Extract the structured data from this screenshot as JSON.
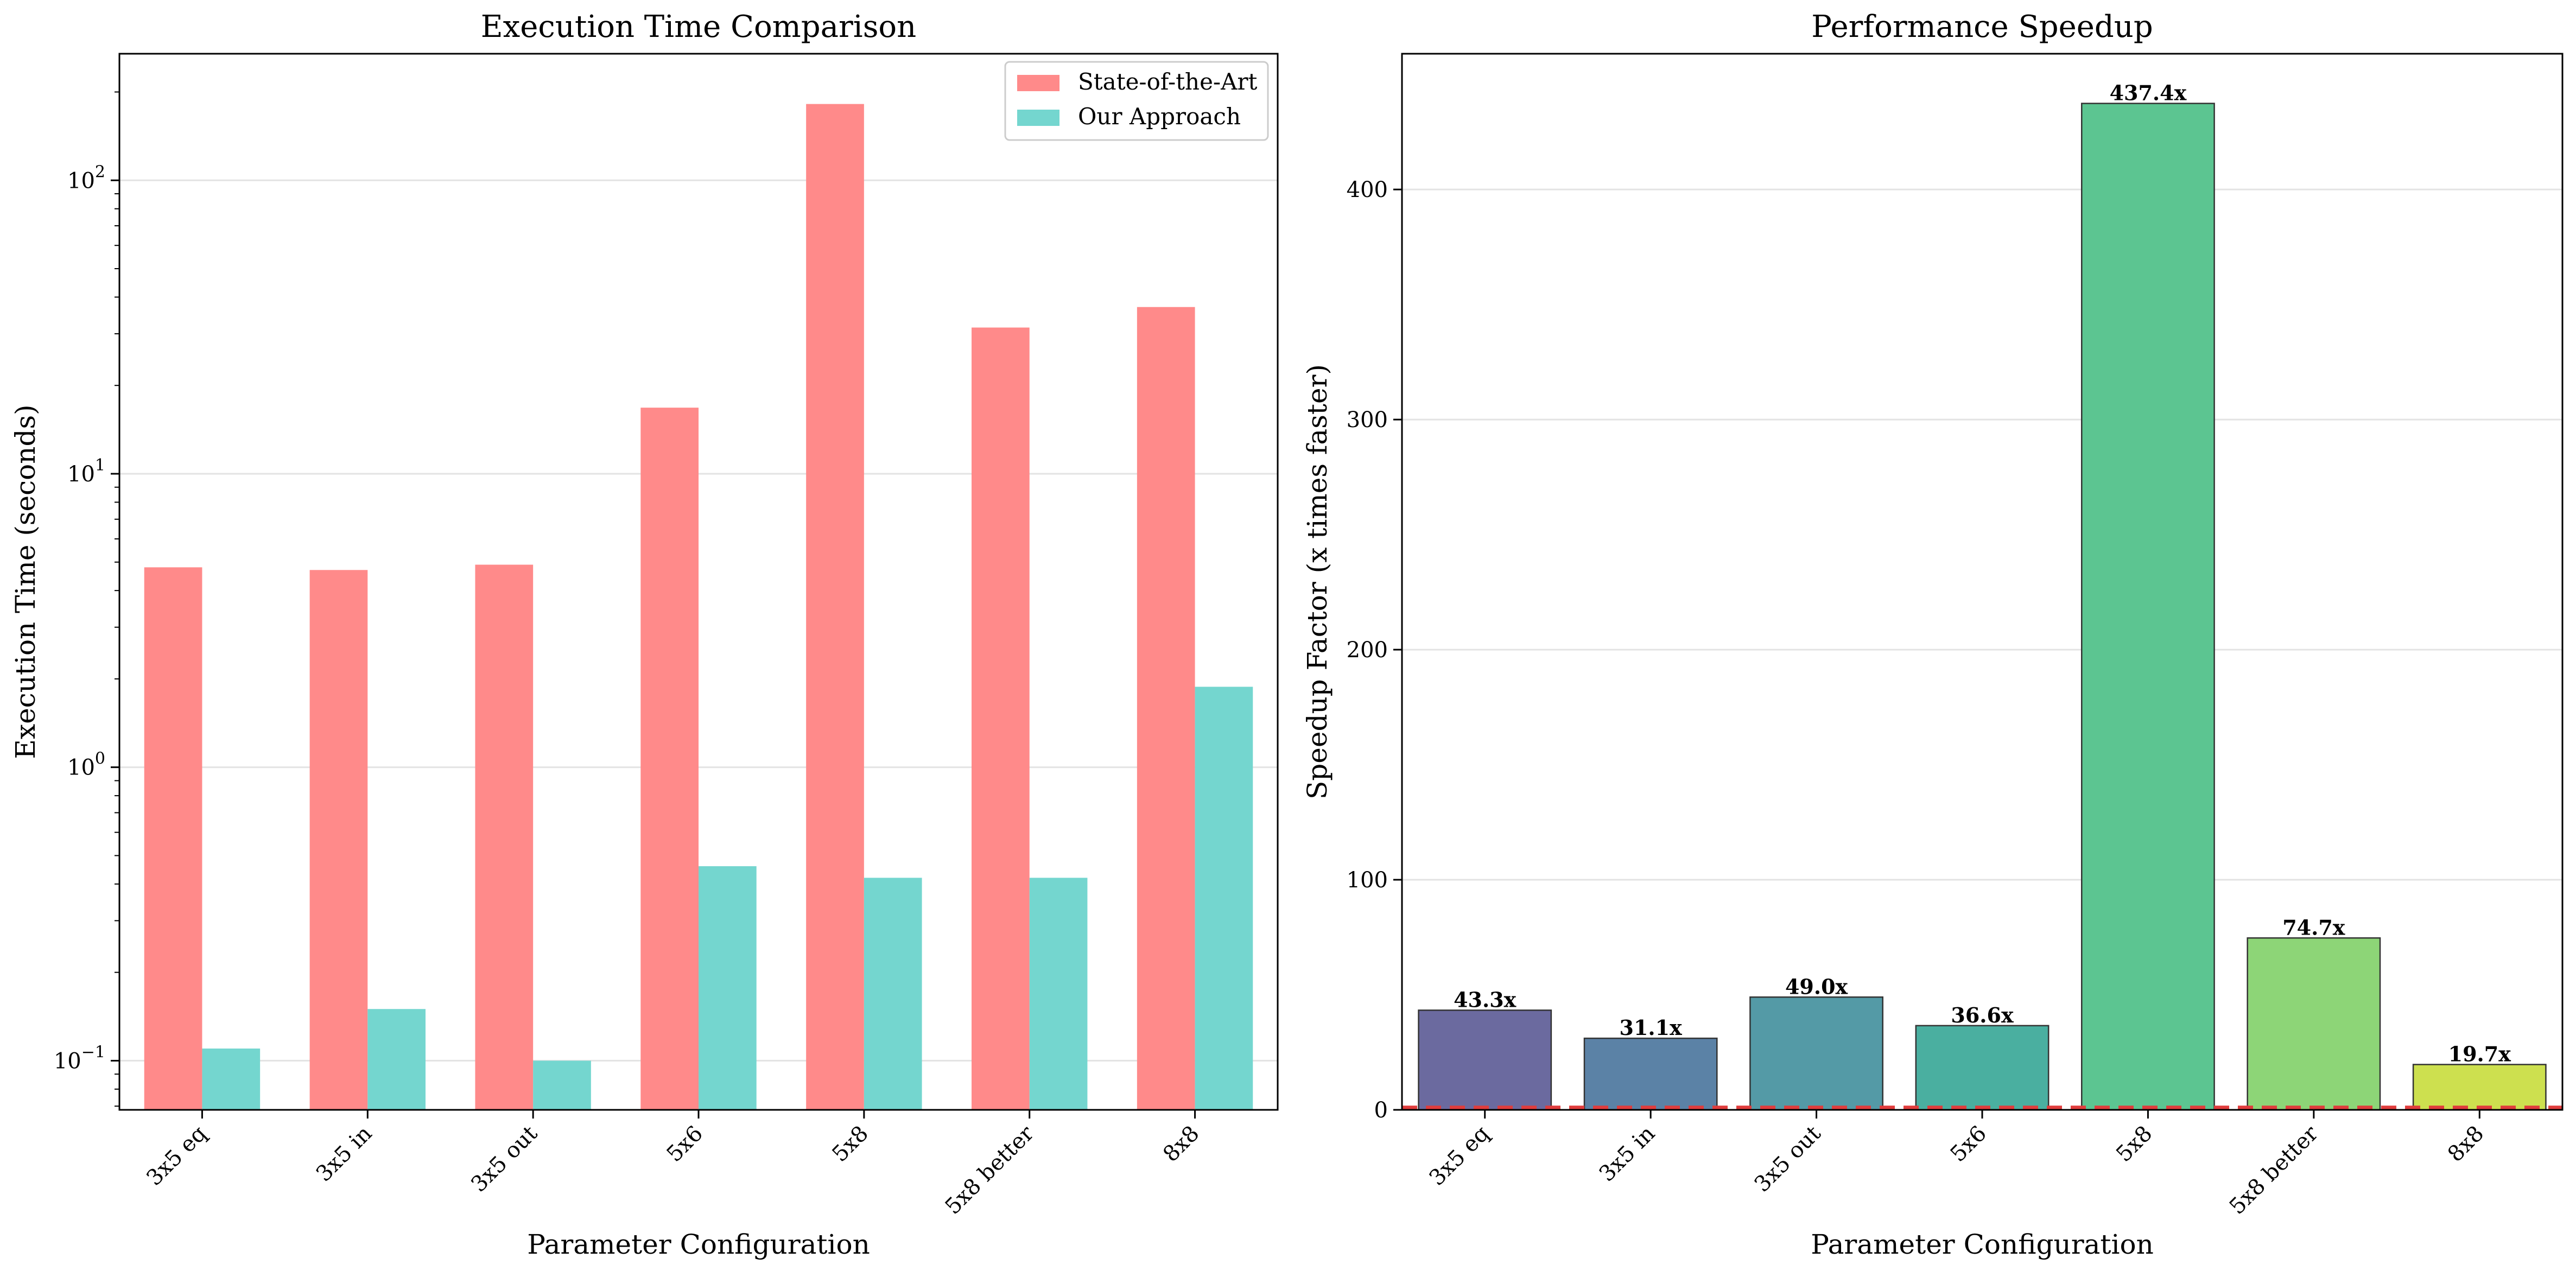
{
  "chart_data": [
    {
      "type": "bar",
      "title": "Execution Time Comparison",
      "xlabel": "Parameter Configuration",
      "ylabel": "Execution Time (seconds)",
      "yscale": "log",
      "ylim": [
        0.068,
        270
      ],
      "ytick_values": [
        0.1,
        1,
        10,
        100
      ],
      "ytick_labels": [
        {
          "base": "10",
          "exp": "−1"
        },
        {
          "base": "10",
          "exp": "0"
        },
        {
          "base": "10",
          "exp": "1"
        },
        {
          "base": "10",
          "exp": "2"
        }
      ],
      "grid": true,
      "legend_position": "top-right",
      "categories": [
        "3x5 eq",
        "3x5 in",
        "3x5 out",
        "5x6",
        "5x8",
        "5x8 better",
        "8x8"
      ],
      "series": [
        {
          "name": "State-of-the-Art",
          "color": "#ff8a8a",
          "values": [
            4.8,
            4.7,
            4.9,
            16.8,
            182,
            31.5,
            37
          ]
        },
        {
          "name": "Our Approach",
          "color": "#74d6cf",
          "values": [
            0.11,
            0.15,
            0.1,
            0.46,
            0.42,
            0.42,
            1.88
          ]
        }
      ]
    },
    {
      "type": "bar",
      "title": "Performance Speedup",
      "xlabel": "Parameter Configuration",
      "ylabel": "Speedup Factor (x times faster)",
      "ylim": [
        0,
        459
      ],
      "yticks": [
        0,
        100,
        200,
        300,
        400
      ],
      "grid": true,
      "reference_line": {
        "value": 1,
        "color": "#e03c3c",
        "style": "dashed"
      },
      "categories": [
        "3x5 eq",
        "3x5 in",
        "3x5 out",
        "5x6",
        "5x8",
        "5x8 better",
        "8x8"
      ],
      "values": [
        43.3,
        31.1,
        49.0,
        36.6,
        437.4,
        74.7,
        19.7
      ],
      "labels": [
        "43.3x",
        "31.1x",
        "49.0x",
        "36.6x",
        "437.4x",
        "74.7x",
        "19.7x"
      ],
      "colors": [
        "#6b6a9f",
        "#5b82a6",
        "#549aa6",
        "#4aafa0",
        "#5cc591",
        "#8dd577",
        "#cde04f"
      ]
    }
  ]
}
